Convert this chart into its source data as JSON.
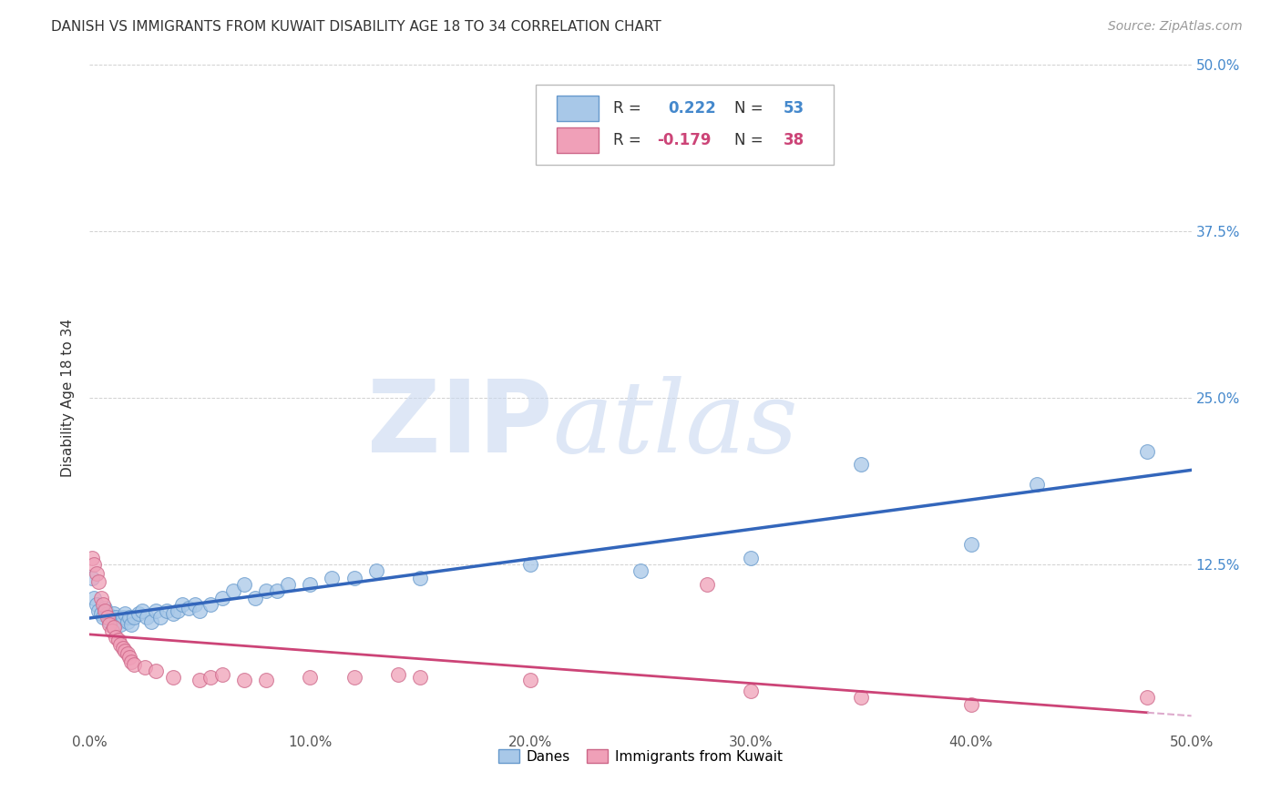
{
  "title": "DANISH VS IMMIGRANTS FROM KUWAIT DISABILITY AGE 18 TO 34 CORRELATION CHART",
  "source": "Source: ZipAtlas.com",
  "ylabel": "Disability Age 18 to 34",
  "xlim": [
    0.0,
    0.5
  ],
  "ylim": [
    0.0,
    0.5
  ],
  "danes_color": "#a8c8e8",
  "danes_edge_color": "#6699cc",
  "kuwait_color": "#f0a0b8",
  "kuwait_edge_color": "#cc6688",
  "danes_line_color": "#3366bb",
  "kuwait_line_color": "#cc4477",
  "kuwait_dash_color": "#ddaacc",
  "danes_R": 0.222,
  "danes_N": 53,
  "kuwait_R": -0.179,
  "kuwait_N": 38,
  "legend_label_danes": "Danes",
  "legend_label_kuwait": "Immigrants from Kuwait",
  "watermark_zip": "ZIP",
  "watermark_atlas": "atlas",
  "danes_x": [
    0.001,
    0.002,
    0.003,
    0.004,
    0.005,
    0.006,
    0.007,
    0.008,
    0.009,
    0.01,
    0.011,
    0.012,
    0.013,
    0.014,
    0.015,
    0.016,
    0.017,
    0.018,
    0.019,
    0.02,
    0.022,
    0.024,
    0.026,
    0.028,
    0.03,
    0.032,
    0.035,
    0.038,
    0.04,
    0.042,
    0.045,
    0.048,
    0.05,
    0.055,
    0.06,
    0.065,
    0.07,
    0.075,
    0.08,
    0.085,
    0.09,
    0.1,
    0.11,
    0.12,
    0.13,
    0.15,
    0.2,
    0.25,
    0.3,
    0.35,
    0.4,
    0.43,
    0.48
  ],
  "danes_y": [
    0.115,
    0.1,
    0.095,
    0.09,
    0.088,
    0.085,
    0.092,
    0.088,
    0.082,
    0.085,
    0.088,
    0.085,
    0.082,
    0.08,
    0.085,
    0.088,
    0.082,
    0.085,
    0.08,
    0.085,
    0.088,
    0.09,
    0.085,
    0.082,
    0.09,
    0.085,
    0.09,
    0.088,
    0.09,
    0.095,
    0.092,
    0.095,
    0.09,
    0.095,
    0.1,
    0.105,
    0.11,
    0.1,
    0.105,
    0.105,
    0.11,
    0.11,
    0.115,
    0.115,
    0.12,
    0.115,
    0.125,
    0.12,
    0.13,
    0.2,
    0.14,
    0.185,
    0.21
  ],
  "kuwait_x": [
    0.001,
    0.002,
    0.003,
    0.004,
    0.005,
    0.006,
    0.007,
    0.008,
    0.009,
    0.01,
    0.011,
    0.012,
    0.013,
    0.014,
    0.015,
    0.016,
    0.017,
    0.018,
    0.019,
    0.02,
    0.025,
    0.03,
    0.038,
    0.05,
    0.055,
    0.06,
    0.07,
    0.08,
    0.1,
    0.12,
    0.14,
    0.15,
    0.2,
    0.28,
    0.3,
    0.35,
    0.4,
    0.48
  ],
  "kuwait_y": [
    0.13,
    0.125,
    0.118,
    0.112,
    0.1,
    0.095,
    0.09,
    0.085,
    0.08,
    0.075,
    0.078,
    0.07,
    0.068,
    0.065,
    0.062,
    0.06,
    0.058,
    0.055,
    0.052,
    0.05,
    0.048,
    0.045,
    0.04,
    0.038,
    0.04,
    0.042,
    0.038,
    0.038,
    0.04,
    0.04,
    0.042,
    0.04,
    0.038,
    0.11,
    0.03,
    0.025,
    0.02,
    0.025
  ]
}
